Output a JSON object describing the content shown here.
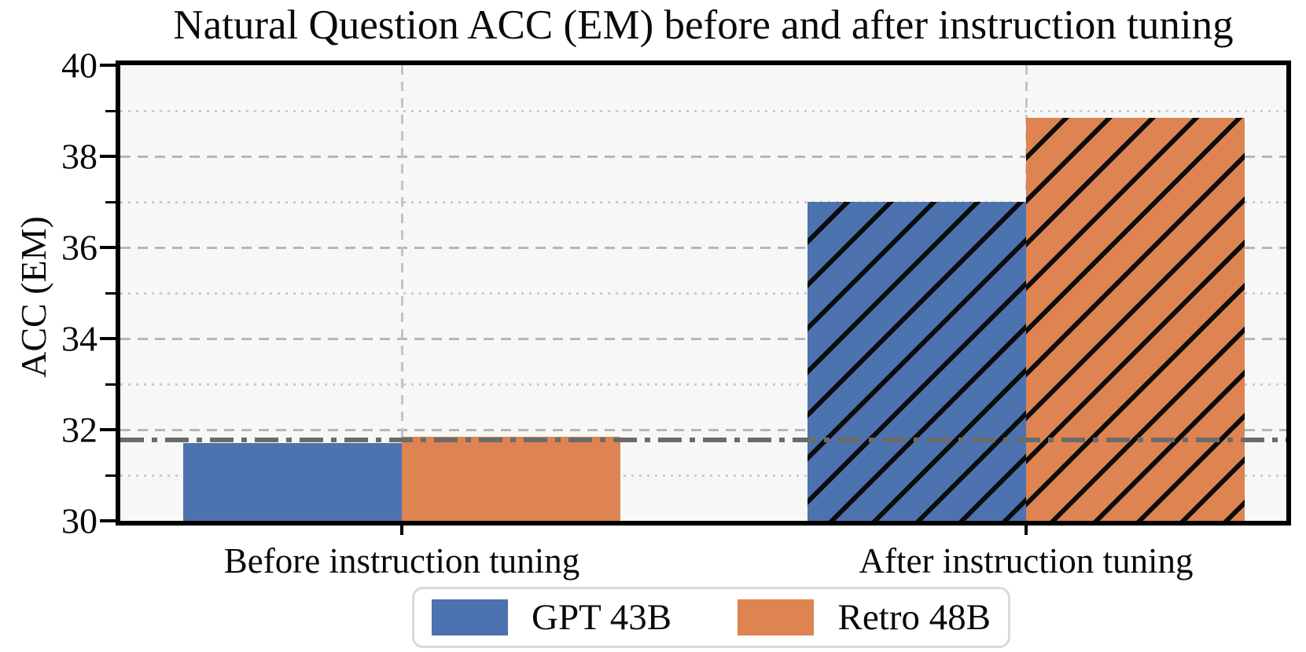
{
  "chart_data": {
    "type": "bar",
    "title": "Natural Question ACC (EM) before and after instruction tuning",
    "ylabel": "ACC (EM)",
    "xlabel": "",
    "categories": [
      "Before instruction tuning",
      "After instruction tuning"
    ],
    "series": [
      {
        "name": "GPT 43B",
        "color": "#4C72B0",
        "values": [
          31.7,
          37.0
        ]
      },
      {
        "name": "Retro 48B",
        "color": "#DD8452",
        "values": [
          31.85,
          38.85
        ]
      }
    ],
    "hatch": {
      "pattern": "/",
      "categories": [
        "After instruction tuning"
      ]
    },
    "baseline": {
      "value": 31.78,
      "style": "dash-dot",
      "color": "#6b6b6b"
    },
    "ylim": [
      30,
      40
    ],
    "yticks_major": [
      30,
      32,
      34,
      36,
      38,
      40
    ],
    "yticks_minor": [
      31,
      33,
      35,
      37,
      39
    ],
    "grid": {
      "major": "dashed",
      "minor": "dotted",
      "vertical_at_category_centers": "dashed",
      "on": true
    },
    "legend": {
      "position": "bottom-center",
      "entries": [
        "GPT 43B",
        "Retro 48B"
      ]
    },
    "style": {
      "plot_background": "#f7f7f6",
      "figure_background": "#ffffff",
      "grid_major_color": "#b7b7b7",
      "grid_minor_color": "#cbcbcb",
      "hatch_color": "#0c0c0c",
      "spine_color": "#000000"
    }
  }
}
